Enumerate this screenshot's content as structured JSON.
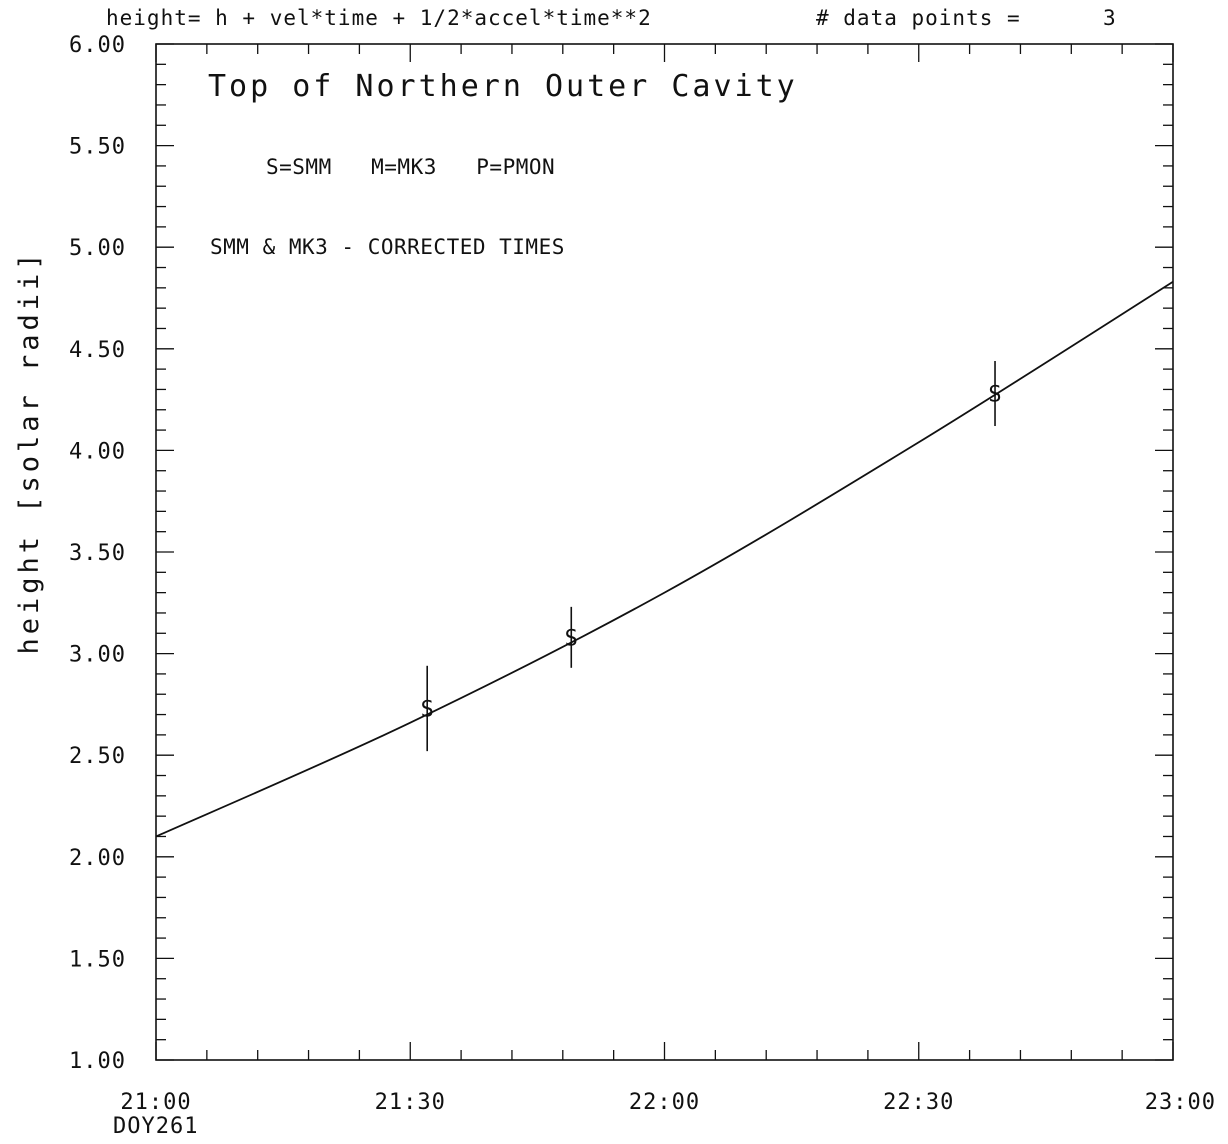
{
  "header": {
    "formula": "height= h + vel*time + 1/2*accel*time**2",
    "points_label": "# data points =",
    "points_value": "3"
  },
  "chart_data": {
    "type": "scatter",
    "title": "Top of Northern Outer Cavity",
    "annotations": [
      "S=SMM   M=MK3   P=PMON",
      "SMM & MK3 - CORRECTED TIMES"
    ],
    "ylabel": "height [solar radii]",
    "xlabel": "",
    "x_tick_labels": [
      "21:00",
      "21:30",
      "22:00",
      "22:30",
      "23:00"
    ],
    "x_sublabel": "DOY261",
    "y_tick_labels": [
      "1.00",
      "1.50",
      "2.00",
      "2.50",
      "3.00",
      "3.50",
      "4.00",
      "4.50",
      "5.00",
      "5.50",
      "6.00"
    ],
    "xlim": [
      "21:00",
      "23:00"
    ],
    "ylim": [
      1.0,
      6.0
    ],
    "grid": false,
    "series": [
      {
        "marker": "S",
        "points": [
          {
            "x": "21:32",
            "y": 2.73,
            "err": 0.21
          },
          {
            "x": "21:49",
            "y": 3.08,
            "err": 0.15
          },
          {
            "x": "22:39",
            "y": 4.28,
            "err": 0.16
          }
        ]
      }
    ],
    "fit_curve": [
      {
        "x": "21:00",
        "y": 2.1
      },
      {
        "x": "21:30",
        "y": 2.66
      },
      {
        "x": "22:00",
        "y": 3.3
      },
      {
        "x": "22:30",
        "y": 4.04
      },
      {
        "x": "23:00",
        "y": 4.83
      }
    ]
  }
}
